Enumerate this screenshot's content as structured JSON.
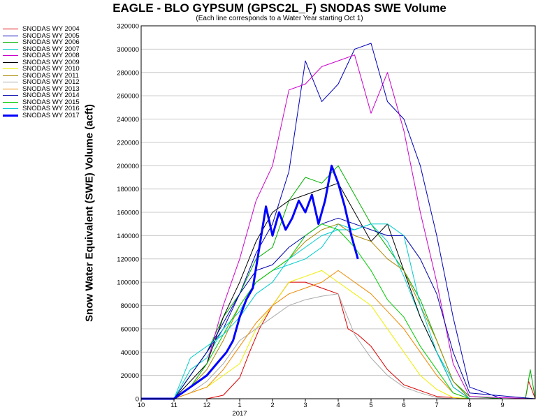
{
  "chart_data": {
    "type": "line",
    "title": "EAGLE - BLO GYPSUM (GPSC2L_F) SNODAS SWE Volume",
    "subtitle": "(Each line corresponds to a Water Year starting Oct 1)",
    "xlabel": "",
    "ylabel": "Snow Water Equivalent (SWE) Volume (acft)",
    "ylim": [
      0,
      320000
    ],
    "yticks": [
      "0",
      "20000",
      "40000",
      "60000",
      "80000",
      "100000",
      "120000",
      "140000",
      "160000",
      "180000",
      "200000",
      "220000",
      "240000",
      "260000",
      "280000",
      "300000",
      "320000"
    ],
    "xticks": [
      "10",
      "11",
      "12",
      "1",
      "2",
      "3",
      "4",
      "5",
      "6",
      "7",
      "8",
      "9"
    ],
    "xtick_year": "2017",
    "grid": true,
    "legend_position": "left",
    "series": [
      {
        "name": "SNODAS WY 2004",
        "color": "#dd0000",
        "width": 1,
        "x": [
          0,
          1,
          2,
          2.5,
          3,
          3.3,
          3.6,
          4,
          4.5,
          5,
          5.5,
          6,
          6.3,
          6.6,
          7,
          7.5,
          8,
          9,
          10,
          11,
          11.7,
          11.8,
          12
        ],
        "y": [
          0,
          0,
          0,
          3000,
          18000,
          40000,
          60000,
          80000,
          100000,
          100000,
          95000,
          90000,
          60000,
          55000,
          45000,
          25000,
          12000,
          2000,
          0,
          0,
          0,
          15000,
          0
        ]
      },
      {
        "name": "SNODAS WY 2005",
        "color": "#0000bb",
        "width": 1,
        "x": [
          0,
          1,
          1.5,
          2,
          2.5,
          3,
          3.5,
          4,
          4.5,
          5,
          5.5,
          6,
          6.5,
          7,
          7.5,
          8,
          8.5,
          9,
          9.5,
          10,
          11,
          12
        ],
        "y": [
          0,
          0,
          20000,
          40000,
          60000,
          90000,
          125000,
          150000,
          195000,
          290000,
          255000,
          270000,
          300000,
          305000,
          255000,
          240000,
          200000,
          140000,
          70000,
          10000,
          0,
          0
        ]
      },
      {
        "name": "SNODAS WY 2006",
        "color": "#00b000",
        "width": 1,
        "x": [
          0,
          1,
          1.5,
          2,
          2.5,
          3,
          3.5,
          4,
          4.5,
          5,
          5.5,
          6,
          6.5,
          7,
          7.5,
          8,
          8.5,
          9,
          9.5,
          10,
          11,
          11.7,
          11.85,
          12
        ],
        "y": [
          0,
          0,
          20000,
          40000,
          70000,
          90000,
          120000,
          130000,
          170000,
          190000,
          185000,
          200000,
          175000,
          150000,
          130000,
          110000,
          85000,
          50000,
          15000,
          2000,
          0,
          0,
          25000,
          0
        ]
      },
      {
        "name": "SNODAS WY 2007",
        "color": "#00cccc",
        "width": 1,
        "x": [
          0,
          1,
          1.5,
          2,
          2.5,
          3,
          3.5,
          4,
          4.5,
          5,
          5.5,
          6,
          6.5,
          7,
          7.5,
          8,
          8.5,
          9,
          9.5,
          10,
          12
        ],
        "y": [
          0,
          0,
          25000,
          35000,
          60000,
          75000,
          100000,
          110000,
          115000,
          120000,
          130000,
          150000,
          145000,
          150000,
          135000,
          105000,
          70000,
          40000,
          15000,
          0,
          0
        ]
      },
      {
        "name": "SNODAS WY 2008",
        "color": "#cc00cc",
        "width": 1,
        "x": [
          0,
          1,
          1.5,
          2,
          2.5,
          3,
          3.5,
          4,
          4.5,
          5,
          5.5,
          6,
          6.5,
          7,
          7.5,
          8,
          8.5,
          9,
          9.5,
          10,
          12
        ],
        "y": [
          0,
          0,
          10000,
          30000,
          80000,
          120000,
          170000,
          200000,
          265000,
          270000,
          285000,
          290000,
          295000,
          245000,
          280000,
          230000,
          160000,
          100000,
          30000,
          2000,
          0
        ]
      },
      {
        "name": "SNODAS WY 2009",
        "color": "#000000",
        "width": 1,
        "x": [
          0,
          1,
          1.5,
          2,
          2.5,
          3,
          3.5,
          4,
          4.5,
          5,
          5.5,
          6,
          6.5,
          7,
          7.5,
          8,
          8.5,
          9,
          9.5,
          10,
          12
        ],
        "y": [
          0,
          0,
          15000,
          30000,
          70000,
          100000,
          135000,
          160000,
          170000,
          175000,
          180000,
          185000,
          160000,
          135000,
          150000,
          110000,
          70000,
          40000,
          10000,
          0,
          0
        ]
      },
      {
        "name": "SNODAS WY 2010",
        "color": "#eeee00",
        "width": 1,
        "x": [
          0,
          1,
          1.5,
          2,
          2.5,
          3,
          3.5,
          4,
          4.5,
          5,
          5.5,
          6,
          6.5,
          7,
          7.5,
          8,
          8.5,
          9,
          9.5,
          10,
          12
        ],
        "y": [
          0,
          0,
          5000,
          10000,
          20000,
          30000,
          60000,
          80000,
          100000,
          105000,
          110000,
          100000,
          90000,
          80000,
          60000,
          40000,
          20000,
          8000,
          1000,
          0,
          0
        ]
      },
      {
        "name": "SNODAS WY 2011",
        "color": "#aa8800",
        "width": 1,
        "x": [
          0,
          1,
          1.5,
          2,
          2.5,
          3,
          3.5,
          4,
          4.5,
          5,
          5.5,
          6,
          6.5,
          7,
          7.5,
          8,
          8.5,
          9,
          9.5,
          10,
          12
        ],
        "y": [
          0,
          0,
          10000,
          25000,
          50000,
          80000,
          100000,
          110000,
          120000,
          135000,
          145000,
          150000,
          140000,
          135000,
          120000,
          110000,
          80000,
          50000,
          15000,
          0,
          0
        ]
      },
      {
        "name": "SNODAS WY 2012",
        "color": "#aaaaaa",
        "width": 1,
        "x": [
          0,
          1,
          1.5,
          2,
          2.5,
          3,
          3.5,
          4,
          4.5,
          5,
          5.5,
          6,
          6.5,
          7,
          7.5,
          8,
          8.5,
          9,
          9.5,
          10,
          12
        ],
        "y": [
          0,
          0,
          5000,
          15000,
          30000,
          50000,
          60000,
          70000,
          80000,
          85000,
          88000,
          90000,
          55000,
          35000,
          20000,
          10000,
          5000,
          1000,
          0,
          0,
          0
        ]
      },
      {
        "name": "SNODAS WY 2013",
        "color": "#ee8800",
        "width": 1,
        "x": [
          0,
          1,
          1.5,
          2,
          2.5,
          3,
          3.5,
          4,
          4.5,
          5,
          5.5,
          6,
          6.5,
          7,
          7.5,
          8,
          8.5,
          9,
          9.5,
          10,
          12
        ],
        "y": [
          0,
          0,
          5000,
          10000,
          25000,
          45000,
          65000,
          80000,
          90000,
          95000,
          100000,
          110000,
          100000,
          90000,
          75000,
          60000,
          40000,
          20000,
          5000,
          0,
          0
        ]
      },
      {
        "name": "SNODAS WY 2014",
        "color": "#0000aa",
        "width": 1,
        "x": [
          0,
          1,
          1.5,
          2,
          2.5,
          3,
          3.5,
          4,
          4.5,
          5,
          5.5,
          6,
          6.5,
          7,
          7.5,
          8,
          8.5,
          9,
          9.5,
          10,
          12
        ],
        "y": [
          0,
          0,
          20000,
          40000,
          65000,
          90000,
          110000,
          115000,
          130000,
          140000,
          150000,
          155000,
          150000,
          145000,
          140000,
          140000,
          120000,
          90000,
          40000,
          5000,
          0
        ]
      },
      {
        "name": "SNODAS WY 2015",
        "color": "#00cc00",
        "width": 1,
        "x": [
          0,
          1,
          1.5,
          2,
          2.5,
          3,
          3.5,
          4,
          4.5,
          5,
          5.5,
          6,
          6.5,
          7,
          7.5,
          8,
          8.5,
          9,
          9.5,
          10,
          12
        ],
        "y": [
          0,
          0,
          10000,
          30000,
          55000,
          80000,
          100000,
          110000,
          120000,
          140000,
          150000,
          145000,
          130000,
          110000,
          85000,
          70000,
          45000,
          25000,
          5000,
          0,
          0
        ]
      },
      {
        "name": "SNODAS WY 2016",
        "color": "#00cccc",
        "width": 1,
        "x": [
          0,
          1,
          1.5,
          2,
          2.5,
          3,
          3.5,
          4,
          4.5,
          5,
          5.5,
          6,
          6.5,
          7,
          7.5,
          8,
          8.5,
          9,
          9.5,
          10,
          12
        ],
        "y": [
          0,
          0,
          35000,
          45000,
          55000,
          70000,
          90000,
          100000,
          120000,
          130000,
          140000,
          145000,
          145000,
          150000,
          150000,
          140000,
          80000,
          40000,
          10000,
          0,
          0
        ]
      },
      {
        "name": "SNODAS WY 2017",
        "color": "#0000ff",
        "width": 3,
        "x": [
          0,
          1,
          1.5,
          2,
          2.3,
          2.6,
          2.8,
          3,
          3.2,
          3.4,
          3.6,
          3.8,
          4,
          4.2,
          4.4,
          4.6,
          4.8,
          5,
          5.2,
          5.4,
          5.6,
          5.8,
          6,
          6.2,
          6.4,
          6.6
        ],
        "y": [
          0,
          0,
          10000,
          20000,
          30000,
          40000,
          50000,
          70000,
          85000,
          95000,
          130000,
          165000,
          140000,
          160000,
          145000,
          155000,
          170000,
          160000,
          175000,
          150000,
          170000,
          200000,
          185000,
          165000,
          140000,
          120000
        ]
      }
    ]
  }
}
